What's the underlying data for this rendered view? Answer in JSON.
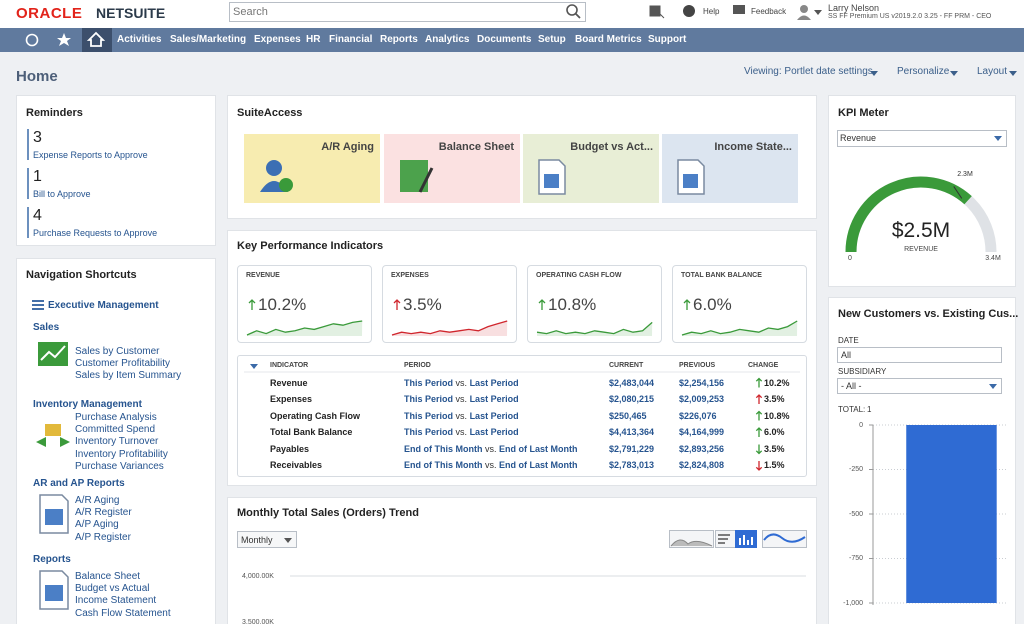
{
  "header": {
    "brand": "ORACLE",
    "product": "NETSUITE",
    "search_placeholder": "Search",
    "help": "Help",
    "feedback": "Feedback",
    "user_name": "Larry Nelson",
    "user_role": "SS FF Premium US v2019.2.0 3.25 - FF PRM - CEO"
  },
  "nav": {
    "items": [
      "Activities",
      "Sales/Marketing",
      "Expenses",
      "HR",
      "Financial",
      "Reports",
      "Analytics",
      "Documents",
      "Setup",
      "Board Metrics",
      "Support"
    ]
  },
  "page": {
    "title": "Home",
    "viewing": "Viewing: Portlet date settings",
    "personalize": "Personalize",
    "layout": "Layout"
  },
  "reminders": {
    "title": "Reminders",
    "items": [
      {
        "count": "3",
        "label": "Expense Reports to Approve"
      },
      {
        "count": "1",
        "label": "Bill to Approve"
      },
      {
        "count": "4",
        "label": "Purchase Requests to Approve"
      }
    ]
  },
  "shortcuts": {
    "title": "Navigation Shortcuts",
    "exec": "Executive Management",
    "groups": [
      {
        "name": "Sales",
        "links": [
          "Sales by Customer",
          "Customer Profitability",
          "Sales by Item Summary"
        ]
      },
      {
        "name": "Inventory Management",
        "links": [
          "Purchase Analysis",
          "Committed Spend",
          "Inventory Turnover",
          "Inventory Profitability",
          "Purchase Variances"
        ]
      },
      {
        "name": "AR and AP Reports",
        "links": [
          "A/R Aging",
          "A/R Register",
          "A/P Aging",
          "A/P Register"
        ]
      },
      {
        "name": "Reports",
        "links": [
          "Balance Sheet",
          "Budget vs Actual",
          "Income Statement",
          "Cash Flow Statement"
        ]
      }
    ]
  },
  "suiteaccess": {
    "title": "SuiteAccess",
    "tiles": [
      "A/R Aging",
      "Balance Sheet",
      "Budget vs Act...",
      "Income State..."
    ]
  },
  "kpi": {
    "title": "Key Performance Indicators",
    "cards": [
      {
        "name": "REVENUE",
        "value": "10.2%",
        "arrow": "up",
        "arrow_color": "#3a9a3a"
      },
      {
        "name": "EXPENSES",
        "value": "3.5%",
        "arrow": "up",
        "arrow_color": "#d0262d"
      },
      {
        "name": "OPERATING CASH FLOW",
        "value": "10.8%",
        "arrow": "up",
        "arrow_color": "#3a9a3a"
      },
      {
        "name": "TOTAL BANK BALANCE",
        "value": "6.0%",
        "arrow": "up",
        "arrow_color": "#3a9a3a"
      }
    ],
    "columns": [
      "INDICATOR",
      "PERIOD",
      "CURRENT",
      "PREVIOUS",
      "CHANGE"
    ],
    "rows": [
      {
        "indicator": "Revenue",
        "from": "This Period",
        "vs": "vs.",
        "to": "Last Period",
        "current": "$2,483,044",
        "previous": "$2,254,156",
        "change": "10.2%",
        "arrow": "up",
        "arrow_color": "#3a9a3a"
      },
      {
        "indicator": "Expenses",
        "from": "This Period",
        "vs": "vs.",
        "to": "Last Period",
        "current": "$2,080,215",
        "previous": "$2,009,253",
        "change": "3.5%",
        "arrow": "up",
        "arrow_color": "#d0262d"
      },
      {
        "indicator": "Operating Cash Flow",
        "from": "This Period",
        "vs": "vs.",
        "to": "Last Period",
        "current": "$250,465",
        "previous": "$226,076",
        "change": "10.8%",
        "arrow": "up",
        "arrow_color": "#3a9a3a"
      },
      {
        "indicator": "Total Bank Balance",
        "from": "This Period",
        "vs": "vs.",
        "to": "Last Period",
        "current": "$4,413,364",
        "previous": "$4,164,999",
        "change": "6.0%",
        "arrow": "up",
        "arrow_color": "#3a9a3a"
      },
      {
        "indicator": "Payables",
        "from": "End of This Month",
        "vs": "vs.",
        "to": "End of Last Month",
        "current": "$2,791,229",
        "previous": "$2,893,256",
        "change": "3.5%",
        "arrow": "down",
        "arrow_color": "#3a9a3a"
      },
      {
        "indicator": "Receivables",
        "from": "End of This Month",
        "vs": "vs.",
        "to": "End of Last Month",
        "current": "$2,783,013",
        "previous": "$2,824,808",
        "change": "1.5%",
        "arrow": "down",
        "arrow_color": "#d0262d"
      }
    ]
  },
  "trend": {
    "title": "Monthly Total Sales (Orders) Trend",
    "period": "Monthly",
    "ylabels": [
      "4,000.00K",
      "3,500.00K"
    ]
  },
  "kpi_meter": {
    "title": "KPI Meter",
    "select": "Revenue",
    "value": "$2.5M",
    "caption": "REVENUE",
    "min": "0",
    "max": "3.4M",
    "target": "2.3M"
  },
  "customers": {
    "title": "New Customers vs. Existing Cus...",
    "date_label": "DATE",
    "date_value": "All",
    "subsidiary_label": "SUBSIDIARY",
    "subsidiary_value": "- All -",
    "total_label": "TOTAL:",
    "total": "1"
  },
  "chart_data": {
    "type": "bar",
    "categories": [
      null
    ],
    "values": [
      -1000
    ],
    "color": "#2f6bd3",
    "ylim": [
      -1000,
      0
    ],
    "yticks": [
      0,
      -250,
      -500,
      -750,
      {
        "value": -1000,
        "label": "-1,000"
      }
    ],
    "grid": true
  }
}
